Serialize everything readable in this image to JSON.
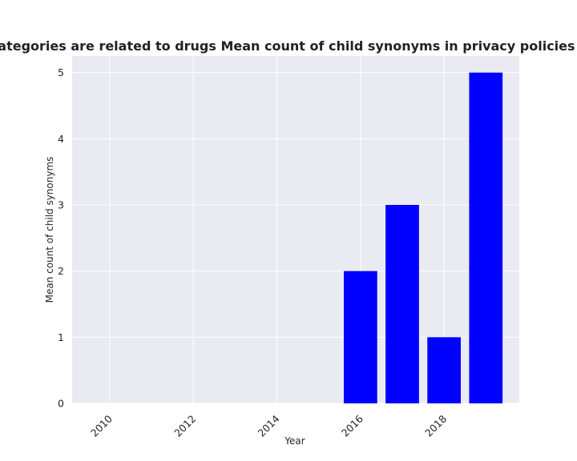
{
  "chart_data": {
    "type": "bar",
    "title": "when categories are related to drugs Mean count of child synonyms in privacy policies by Year",
    "xlabel": "Year",
    "ylabel": "Mean count of child synonyms",
    "x": [
      2016,
      2017,
      2018,
      2019
    ],
    "values": [
      2,
      3,
      1,
      5
    ],
    "xlim": [
      2009.1,
      2019.8
    ],
    "ylim": [
      0,
      5.25
    ],
    "xticks": [
      2010,
      2012,
      2014,
      2016,
      2018
    ],
    "xtick_labels": [
      "2010",
      "2012",
      "2014",
      "2016",
      "2018"
    ],
    "yticks": [
      0,
      1,
      2,
      3,
      4,
      5
    ],
    "ytick_labels": [
      "0",
      "1",
      "2",
      "3",
      "4",
      "5"
    ],
    "bar_color": "#0000ff",
    "background_color": "#eaeaf2",
    "grid": true
  }
}
